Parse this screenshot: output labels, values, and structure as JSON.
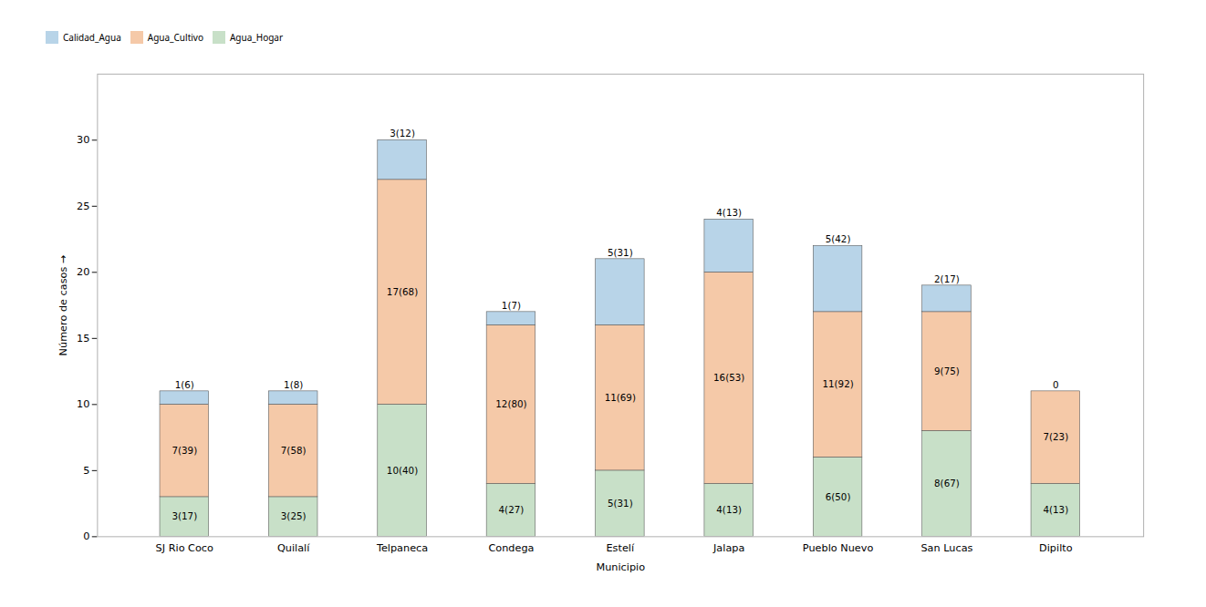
{
  "chart_data": {
    "type": "bar",
    "stacked": true,
    "data_labels": true,
    "xlabel": "Municipio",
    "ylabel": "Número de casos",
    "categories": [
      "SJ Rio Coco",
      "Quilalí",
      "Telpaneca",
      "Condega",
      "Estelí",
      "Jalapa",
      "Pueblo Nuevo",
      "San Lucas",
      "Dipilto"
    ],
    "series": [
      {
        "name": "Calidad_Agua",
        "color": "#b8d4e8",
        "values": [
          1,
          1,
          3,
          1,
          5,
          4,
          5,
          2,
          0
        ],
        "value_labels": [
          "1(6)",
          "1(8)",
          "3(12)",
          "1(7)",
          "5(31)",
          "4(13)",
          "5(42)",
          "2(17)",
          "0"
        ]
      },
      {
        "name": "Agua_Cultivo",
        "color": "#f5c9a8",
        "values": [
          7,
          7,
          17,
          12,
          11,
          16,
          11,
          9,
          7
        ],
        "value_labels": [
          "7(39)",
          "7(58)",
          "17(68)",
          "12(80)",
          "11(69)",
          "16(53)",
          "11(92)",
          "9(75)",
          "7(23)"
        ]
      },
      {
        "name": "Agua_Hogar",
        "color": "#c8e0c8",
        "values": [
          3,
          3,
          10,
          4,
          5,
          4,
          6,
          8,
          4
        ],
        "value_labels": [
          "3(17)",
          "3(25)",
          "10(40)",
          "4(27)",
          "5(31)",
          "4(13)",
          "6(50)",
          "8(67)",
          "4(13)"
        ]
      }
    ],
    "ylim": [
      0,
      35
    ],
    "yticks": [
      0,
      5,
      10,
      15,
      20,
      25,
      30
    ],
    "grid": false,
    "legend": "top"
  }
}
